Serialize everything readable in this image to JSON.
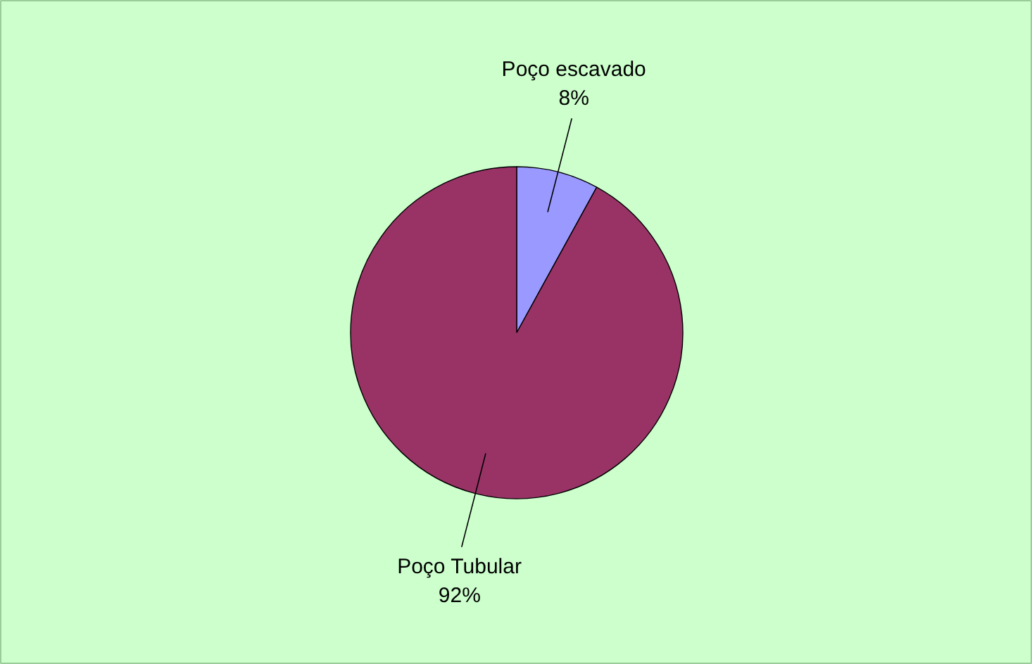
{
  "chart_data": {
    "type": "pie",
    "categories": [
      "Poço escavado",
      "Poço Tubular"
    ],
    "values": [
      8,
      92
    ],
    "colors": [
      "#9999ff",
      "#993366"
    ],
    "value_labels": [
      "8%",
      "92%"
    ]
  }
}
